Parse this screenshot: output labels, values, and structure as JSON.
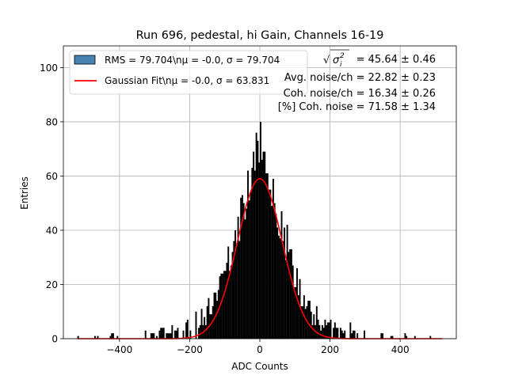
{
  "chart_data": {
    "type": "histogram",
    "title": "Run 696, pedestal, hi Gain, Channels 16-19",
    "xlabel": "ADC Counts",
    "ylabel": "Entries",
    "xlim": [
      -560,
      560
    ],
    "ylim": [
      0,
      108
    ],
    "xticks": [
      -400,
      -200,
      0,
      200,
      400
    ],
    "yticks": [
      0,
      20,
      40,
      60,
      80,
      100
    ],
    "grid": true,
    "bin_width": 4,
    "histogram": {
      "name": "RMS = 79.704\\nμ = -0.0, σ = 79.704",
      "color": "#000000",
      "legend_color": "#4682b4",
      "envelope": [
        [
          -520,
          1
        ],
        [
          -500,
          1
        ],
        [
          -460,
          1
        ],
        [
          -420,
          2
        ],
        [
          -380,
          1
        ],
        [
          -340,
          2
        ],
        [
          -300,
          2
        ],
        [
          -280,
          3
        ],
        [
          -260,
          3
        ],
        [
          -240,
          4
        ],
        [
          -220,
          4
        ],
        [
          -200,
          5
        ],
        [
          -180,
          7
        ],
        [
          -160,
          9
        ],
        [
          -140,
          12
        ],
        [
          -120,
          17
        ],
        [
          -100,
          24
        ],
        [
          -80,
          33
        ],
        [
          -60,
          42
        ],
        [
          -40,
          52
        ],
        [
          -20,
          61
        ],
        [
          0,
          66
        ],
        [
          20,
          61
        ],
        [
          40,
          52
        ],
        [
          60,
          42
        ],
        [
          80,
          32
        ],
        [
          100,
          23
        ],
        [
          120,
          16
        ],
        [
          140,
          11
        ],
        [
          160,
          8
        ],
        [
          180,
          6
        ],
        [
          200,
          5
        ],
        [
          220,
          4
        ],
        [
          240,
          3
        ],
        [
          260,
          3
        ],
        [
          280,
          2
        ],
        [
          300,
          2
        ],
        [
          340,
          2
        ],
        [
          380,
          1
        ],
        [
          420,
          1
        ],
        [
          460,
          1
        ],
        [
          500,
          1
        ],
        [
          520,
          1
        ]
      ],
      "peaks": [
        {
          "x": 2,
          "y": 80
        },
        {
          "x": -10,
          "y": 76
        },
        {
          "x": -46,
          "y": 50
        },
        {
          "x": -64,
          "y": 45
        },
        {
          "x": 76,
          "y": 42
        },
        {
          "x": -96,
          "y": 28
        },
        {
          "x": -144,
          "y": 9
        },
        {
          "x": -210,
          "y": 6
        },
        {
          "x": -424,
          "y": 2
        },
        {
          "x": 186,
          "y": 7
        },
        {
          "x": 256,
          "y": 6
        },
        {
          "x": 412,
          "y": 2
        }
      ]
    },
    "fit": {
      "name": "Gaussian Fit\\nμ = -0.0, σ = 63.831",
      "color": "#ff0000",
      "mu": 0.0,
      "sigma": 63.831,
      "amplitude": 59,
      "x_range": [
        -520,
        520
      ]
    },
    "legend_position": "upper-left",
    "annotations": [
      {
        "id": "sqrt-sigma",
        "prefix": "",
        "value": " = 45.64 ± 0.46"
      },
      {
        "id": "avg-noise",
        "prefix": "",
        "value": "Avg. noise/ch = 22.82 ± 0.23"
      },
      {
        "id": "coh-noise",
        "prefix": "",
        "value": "Coh. noise/ch = 16.34 ± 0.26"
      },
      {
        "id": "pct-coh-noise",
        "prefix": "",
        "value": "[%] Coh. noise = 71.58 ± 1.34"
      }
    ]
  }
}
